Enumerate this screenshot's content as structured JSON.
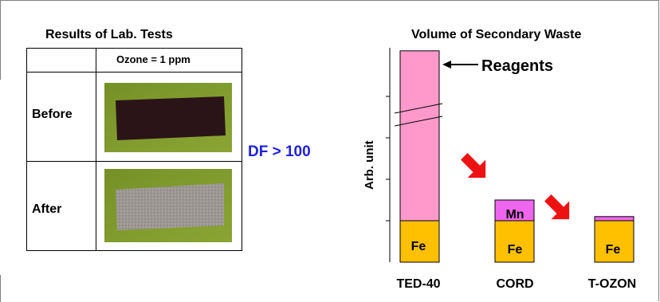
{
  "left_panel": {
    "title": "Results of Lab. Tests",
    "column_header": "Ozone = 1 ppm",
    "rows": [
      {
        "label": "Before"
      },
      {
        "label": "After"
      }
    ]
  },
  "df_annotation": "DF > 100",
  "colors": {
    "reagent_pink": "#ff99cc",
    "reagent_magenta": "#ee66ee",
    "fe_orange": "#ffc000",
    "arrow_red": "#ee1111",
    "df_blue": "#1f1fe0",
    "photo_background": "#7f9b2c",
    "sample_before": "#2a1418",
    "sample_after": "#9a9590"
  },
  "chart_data": {
    "type": "bar",
    "title": "Volume of Secondary Waste",
    "ylabel": "Arb. unit",
    "categories": [
      "TED-40",
      "CORD",
      "T-OZON"
    ],
    "axis_break": true,
    "series": [
      {
        "name": "Fe",
        "values": [
          1,
          1,
          1
        ]
      },
      {
        "name": "Mn",
        "values": [
          0,
          0.5,
          0.1
        ]
      },
      {
        "name": "Reagents",
        "values": [
          4.1,
          0,
          0
        ]
      }
    ],
    "segment_labels": [
      {
        "category": "TED-40",
        "series": "Fe",
        "text": "Fe"
      },
      {
        "category": "CORD",
        "series": "Fe",
        "text": "Fe"
      },
      {
        "category": "CORD",
        "series": "Mn",
        "text": "Mn"
      },
      {
        "category": "T-OZON",
        "series": "Fe",
        "text": "Fe"
      }
    ],
    "annotation": "Reagents"
  }
}
